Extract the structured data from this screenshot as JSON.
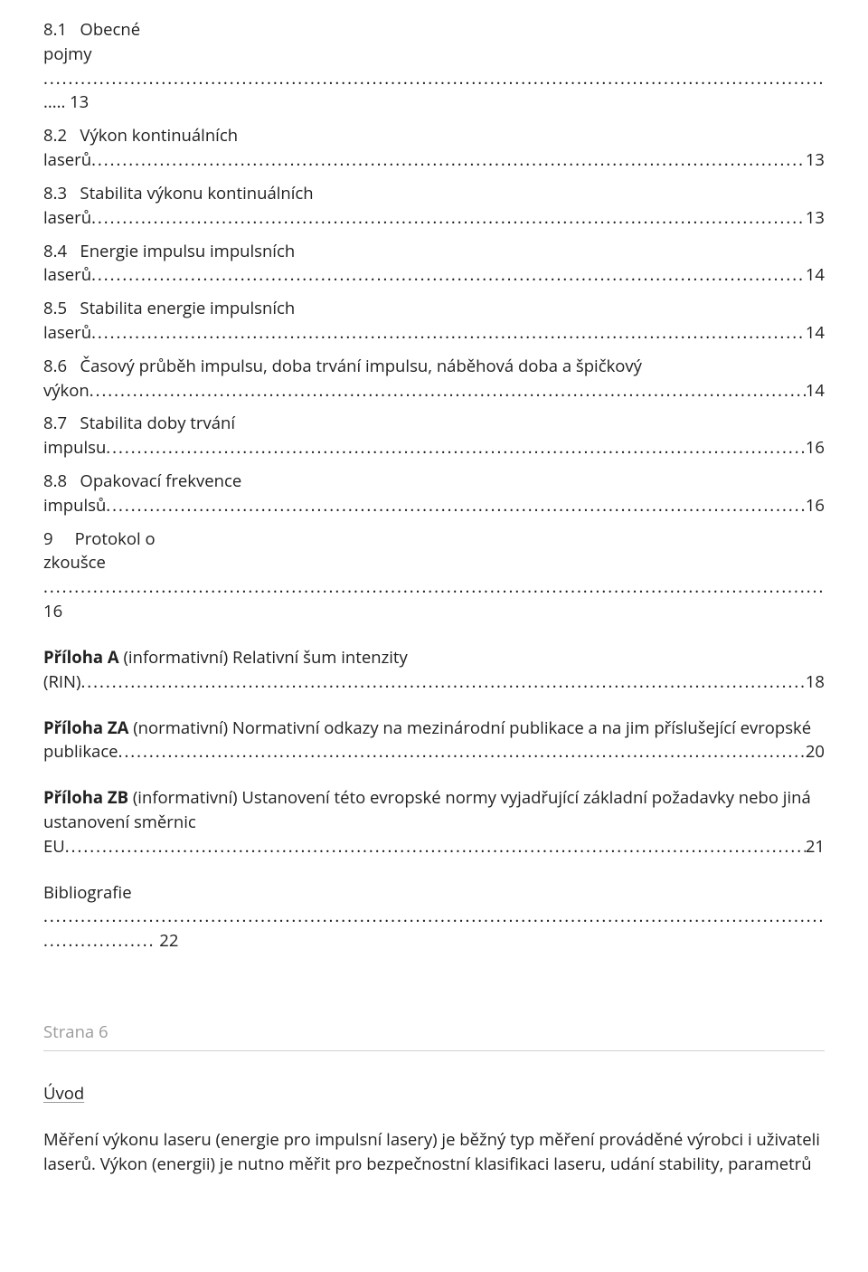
{
  "toc": [
    {
      "num": "8.1",
      "title_l1": "Obecné",
      "title_l2": "pojmy",
      "dots": "\n..... 13",
      "style": "split-dots"
    },
    {
      "num": "8.2",
      "title_l1": "Výkon kontinuálních",
      "title_l2": "laserů",
      "page": "13",
      "style": "split"
    },
    {
      "num": "8.3",
      "title_l1": "Stabilita výkonu kontinuálních",
      "title_l2": "laserů",
      "page": "13",
      "style": "split"
    },
    {
      "num": "8.4",
      "title_l1": "Energie impulsu impulsních",
      "title_l2": "laserů",
      "page": "14",
      "style": "split"
    },
    {
      "num": "8.5",
      "title_l1": "Stabilita energie impulsních",
      "title_l2": "laserů",
      "page": "14",
      "style": "split"
    },
    {
      "num": "8.6",
      "title_l1": "Časový průběh impulsu, doba trvání impulsu, náběhová doba a špičkový",
      "title_l2": "výkon",
      "page": "14",
      "style": "split"
    },
    {
      "num": "8.7",
      "title_l1": "Stabilita doby trvání",
      "title_l2": "impulsu",
      "page": "16",
      "style": "split"
    },
    {
      "num": "8.8",
      "title_l1": "Opakovací frekvence",
      "title_l2": "impulsů",
      "page": "16",
      "style": "split"
    },
    {
      "num": "9",
      "title_l1": "Protokol o",
      "title_l2": "zkoušce",
      "page": "16",
      "style": "split-dots-below",
      "gap_after": true
    },
    {
      "bold_prefix": "Příloha A",
      "rest_l1": " (informativní) Relativní šum intenzity",
      "title_l2": "(RIN)",
      "page": "18",
      "style": "bold-split",
      "gap_after": true
    },
    {
      "bold_prefix": "Příloha ZA",
      "rest_l1": " (normativní) Normativní odkazy na mezinárodní publikace a na jim příslušející evropské",
      "title_l2": "publikace",
      "page": "20",
      "style": "bold-split",
      "gap_after": true
    },
    {
      "bold_prefix": "Příloha ZB",
      "rest_l1": " (informativní) Ustanovení této evropské normy vyjadřující základní požadavky nebo jiná ustanovení směrnic",
      "title_l2": "EU",
      "page": "21",
      "style": "bold-split",
      "gap_after": true
    },
    {
      "title_l1": "Bibliografie",
      "page": "22",
      "style": "biblio"
    }
  ],
  "page_marker": "Strana 6",
  "intro_heading": "Úvod",
  "intro_body": "Měření výkonu laseru (energie pro impulsní lasery) je běžný typ měření prováděné výrobci i uživateli laserů. Výkon (energii) je nutno měřit pro bezpečnostní klasifikaci laseru, udání stability, parametrů"
}
